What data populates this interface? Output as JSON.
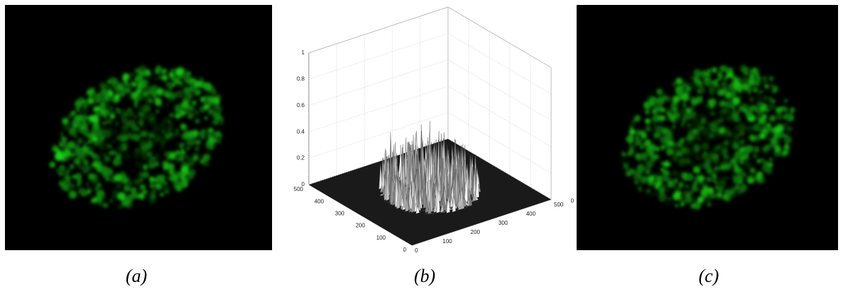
{
  "panels": [
    {
      "caption": "(a)"
    },
    {
      "caption": "(b)"
    },
    {
      "caption": "(c)"
    }
  ],
  "plot": {
    "zticks": [
      0,
      0.2,
      0.4,
      0.6,
      0.8,
      1
    ],
    "zlim": [
      0,
      1
    ],
    "yticks": [
      0,
      100,
      200,
      300,
      400,
      500
    ],
    "ylim": [
      0,
      500
    ],
    "xticks": [
      0,
      100,
      200,
      300,
      400,
      500
    ],
    "xlim": [
      0,
      500
    ],
    "corner_label": "0"
  }
}
